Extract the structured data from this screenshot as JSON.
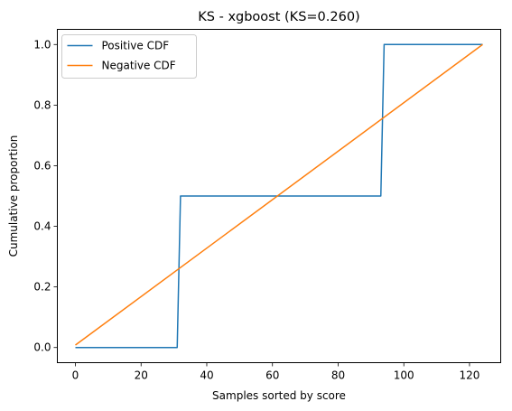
{
  "chart_data": {
    "type": "line",
    "title": "KS - xgboost (KS=0.260)",
    "xlabel": "Samples sorted by score",
    "ylabel": "Cumulative proportion",
    "xlim": [
      -5.5,
      129.5
    ],
    "ylim": [
      -0.05,
      1.05
    ],
    "xticks": [
      0,
      20,
      40,
      60,
      80,
      100,
      120
    ],
    "xtick_labels": [
      "0",
      "20",
      "40",
      "60",
      "80",
      "100",
      "120"
    ],
    "yticks": [
      0.0,
      0.2,
      0.4,
      0.6,
      0.8,
      1.0
    ],
    "ytick_labels": [
      "0.0",
      "0.2",
      "0.4",
      "0.6",
      "0.8",
      "1.0"
    ],
    "grid": false,
    "legend_position": "top-left",
    "series": [
      {
        "name": "Positive CDF",
        "color": "#1f77b4",
        "x": [
          0,
          31,
          32,
          93,
          94,
          124
        ],
        "y": [
          0.0,
          0.0,
          0.5,
          0.5,
          1.0,
          1.0
        ]
      },
      {
        "name": "Negative CDF",
        "color": "#ff7f0e",
        "x": [
          0,
          124
        ],
        "y": [
          0.008,
          1.0
        ]
      }
    ]
  }
}
